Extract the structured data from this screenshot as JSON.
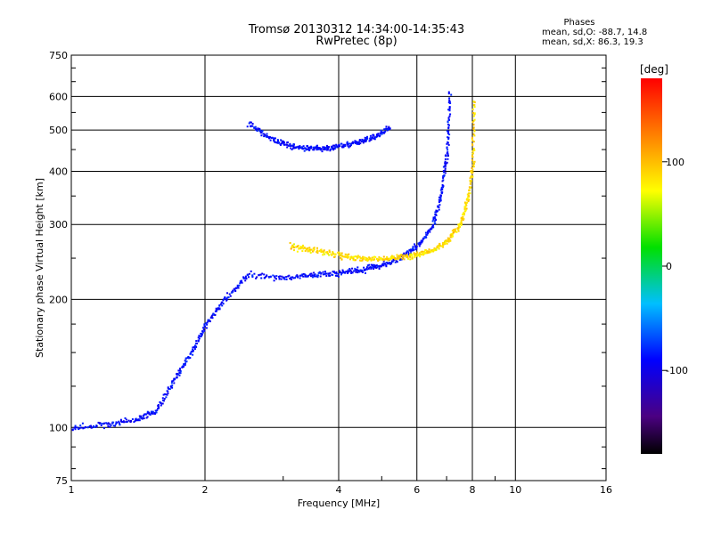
{
  "chart_data": {
    "type": "scatter",
    "title": "Tromsø 20130312 14:34:00-14:35:43",
    "subtitle": "RwPretec (8p)",
    "xlabel": "Frequency [MHz]",
    "ylabel": "Stationary phase Virtual Height [km]",
    "xscale": "log",
    "yscale": "log",
    "xlim": [
      1,
      16
    ],
    "ylim": [
      75,
      750
    ],
    "xticks": [
      1,
      2,
      4,
      6,
      8,
      10,
      16
    ],
    "xtick_labels": [
      "1",
      "2",
      "4",
      "6",
      "8",
      "10",
      "16"
    ],
    "yticks": [
      75,
      100,
      200,
      300,
      400,
      500,
      600,
      750
    ],
    "ytick_labels": [
      "75",
      "100",
      "200",
      "300",
      "400",
      "500",
      "600",
      "750"
    ],
    "grid": true,
    "colorbar": {
      "label": "[deg]",
      "range": [
        -180,
        180
      ],
      "ticks": [
        -100,
        0,
        100
      ],
      "tick_labels": [
        "-100",
        "0",
        "100"
      ]
    },
    "phase_stats": {
      "header": "Phases",
      "o_line": "mean, sd,O: -88.7, 14.8",
      "x_line": "mean, sd,X:  86.3, 19.3"
    },
    "traces": [
      {
        "mode": "O",
        "phase_mean": -88.7,
        "phase_sd": 14.8,
        "x": [
          1.0,
          1.2,
          1.4,
          1.55,
          1.7,
          1.85,
          2.0,
          2.2,
          2.5,
          3.0,
          3.5,
          4.0,
          4.5,
          5.0,
          5.5,
          6.0,
          6.5,
          6.8,
          7.0,
          7.1
        ],
        "y": [
          100,
          102,
          105,
          110,
          130,
          150,
          175,
          200,
          230,
          225,
          230,
          232,
          236,
          242,
          252,
          268,
          300,
          360,
          450,
          620
        ]
      },
      {
        "mode": "O-upper",
        "phase_mean": -88.7,
        "phase_sd": 14.8,
        "x": [
          2.5,
          2.8,
          3.1,
          3.4,
          3.7,
          4.0,
          4.4,
          4.8,
          5.2
        ],
        "y": [
          520,
          480,
          460,
          455,
          455,
          460,
          470,
          485,
          510
        ]
      },
      {
        "mode": "X",
        "phase_mean": 86.3,
        "phase_sd": 19.3,
        "x": [
          3.1,
          3.5,
          4.0,
          4.5,
          5.0,
          5.5,
          6.0,
          6.5,
          7.0,
          7.5,
          7.8,
          8.0,
          8.05
        ],
        "y": [
          268,
          262,
          255,
          250,
          250,
          252,
          256,
          262,
          275,
          300,
          350,
          420,
          600
        ]
      }
    ]
  }
}
